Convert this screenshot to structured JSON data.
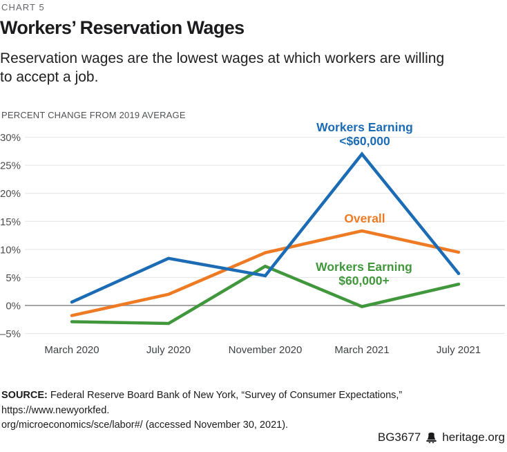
{
  "chart_label": "CHART 5",
  "title": "Workers’ Reservation Wages",
  "subtitle_lines": [
    "Reservation wages are the lowest wages at which workers are willing",
    "to accept a job."
  ],
  "chart_data": {
    "type": "line",
    "title": "Workers’ Reservation Wages",
    "ylabel": "PERCENT CHANGE FROM 2019 AVERAGE",
    "xlabel": "",
    "categories": [
      "March 2020",
      "July 2020",
      "November 2020",
      "March 2021",
      "July 2021"
    ],
    "series": [
      {
        "name": "Workers Earning <$60,000",
        "label_lines": [
          "Workers Earning",
          "<$60,000"
        ],
        "color": "#1b6cb5",
        "values": [
          0.6,
          8.4,
          5.3,
          27.0,
          5.7
        ]
      },
      {
        "name": "Overall",
        "label_lines": [
          "Overall"
        ],
        "color": "#ee7b24",
        "values": [
          -1.8,
          2.0,
          9.4,
          13.3,
          9.5
        ]
      },
      {
        "name": "Workers Earning $60,000+",
        "label_lines": [
          "Workers Earning",
          "$60,000+"
        ],
        "color": "#41973b",
        "values": [
          -2.9,
          -3.2,
          7.0,
          -0.2,
          3.8
        ]
      }
    ],
    "ylim": [
      -5,
      30
    ],
    "ytick_step": 5,
    "ytick_labels": [
      "30%",
      "25%",
      "20%",
      "15%",
      "10%",
      "5%",
      "0%",
      "–5%"
    ],
    "grid": true,
    "grid_color": "#e4e4e4",
    "zero_line_color": "#98989a",
    "legend_position": "inline-annotations"
  },
  "source": {
    "prefix": "SOURCE:",
    "line1": " Federal Reserve Board Bank of New York, “Survey of Consumer Expectations,” https://www.newyorkfed.",
    "line2": "org/microeconomics/sce/labor#/ (accessed November 30, 2021)."
  },
  "footer": {
    "document_id": "BG3677",
    "site": "heritage.org"
  }
}
